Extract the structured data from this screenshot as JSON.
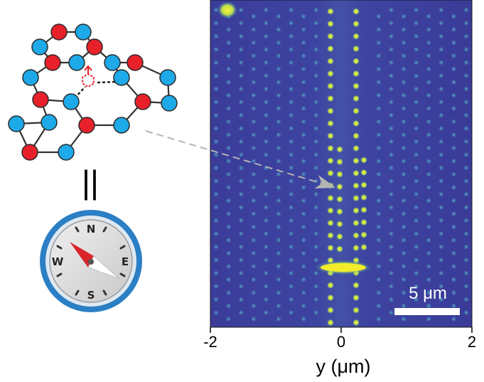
{
  "microscope_image": {
    "axis": {
      "label": "y (μm)",
      "ticks": [
        {
          "label": "-2",
          "value": -2
        },
        {
          "label": "0",
          "value": 0
        },
        {
          "label": "2",
          "value": 2
        }
      ],
      "range": [
        -2,
        2
      ]
    },
    "scale_bar": {
      "label": "5 μm"
    },
    "colormap": {
      "background": "#3a3a9a",
      "site": "#3f7fb0",
      "bright": "#f2ec2a"
    }
  },
  "equivalence_symbol": "||",
  "lattice_colors": {
    "red": "#e8202a",
    "blue": "#1ea9e8",
    "bond": "#333333",
    "defect": "#e8202a"
  },
  "compass": {
    "letters": {
      "north": "N",
      "east": "E",
      "south": "S",
      "west": "W"
    },
    "rim_color": "#2b7fc4",
    "needle_colors": {
      "north": "#d8262b",
      "south": "#ffffff"
    }
  },
  "arrow_color": "#b5b5b5"
}
